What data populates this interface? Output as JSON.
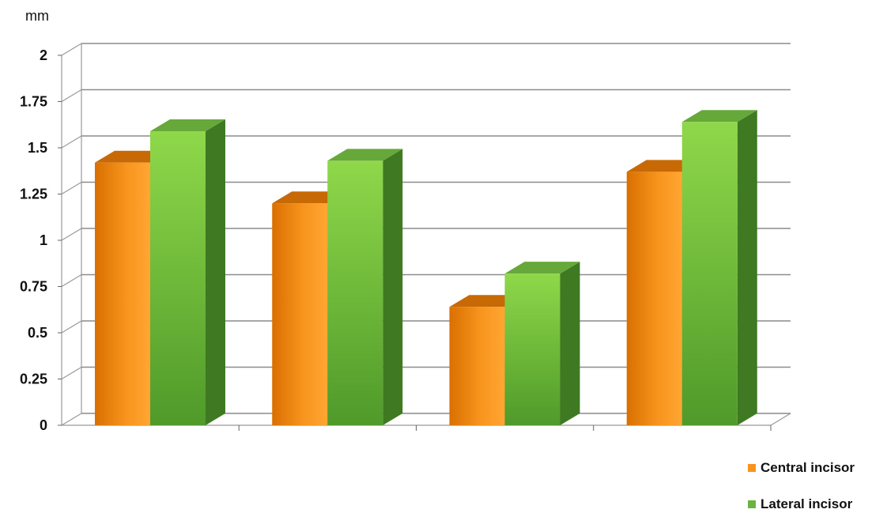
{
  "chart_data": {
    "type": "bar",
    "title": "",
    "xlabel": "",
    "ylabel": "mm",
    "ylim": [
      0,
      2
    ],
    "yticks": [
      "0",
      "0.25",
      "0.5",
      "0.75",
      "1",
      "1.25",
      "1.5",
      "1.75",
      "2"
    ],
    "grid": true,
    "legend": "bottom-right",
    "categories": [
      "",
      "",
      "",
      ""
    ],
    "series": [
      {
        "name": "Central incisor",
        "values": [
          1.42,
          1.2,
          0.64,
          1.37
        ],
        "color": "#f7941d"
      },
      {
        "name": "Lateral incisor",
        "values": [
          1.59,
          1.43,
          0.82,
          1.64
        ],
        "color": "#6db33f"
      }
    ]
  }
}
